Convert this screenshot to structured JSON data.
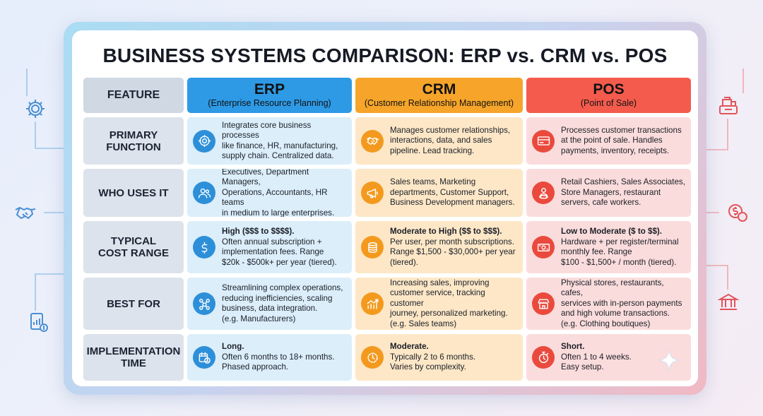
{
  "title": "BUSINESS SYSTEMS COMPARISON: ERP vs. CRM vs. POS",
  "header": {
    "feature": "FEATURE",
    "erp": {
      "name": "ERP",
      "full": "(Enterprise Resource Planning)"
    },
    "crm": {
      "name": "CRM",
      "full": "(Customer Relationship Management)"
    },
    "pos": {
      "name": "POS",
      "full": "(Point of Sale)"
    }
  },
  "rows": [
    {
      "feature": "PRIMARY\nFUNCTION",
      "erp": {
        "icon": "network-gear-icon",
        "lead": "",
        "text": "Integrates core business processes\nlike finance, HR, manufacturing,\nsupply chain. Centralized data."
      },
      "crm": {
        "icon": "handshake-icon",
        "lead": "",
        "text": "Manages customer relationships,\ninteractions, data, and sales\npipeline. Lead tracking."
      },
      "pos": {
        "icon": "credit-card-icon",
        "lead": "",
        "text": "Processes customer transactions\nat the point of sale. Handles\npayments, inventory, receipts."
      }
    },
    {
      "feature": "WHO USES IT",
      "erp": {
        "icon": "users-icon",
        "lead": "",
        "text": "Executives, Department Managers,\nOperations, Accountants, HR teams\nin medium to large enterprises."
      },
      "crm": {
        "icon": "megaphone-icon",
        "lead": "",
        "text": "Sales teams, Marketing\ndepartments, Customer Support,\nBusiness Development managers."
      },
      "pos": {
        "icon": "cashier-icon",
        "lead": "",
        "text": "Retail Cashiers, Sales Associates,\nStore Managers, restaurant\nservers, cafe workers."
      }
    },
    {
      "feature": "TYPICAL\nCOST RANGE",
      "erp": {
        "icon": "dollar-icon",
        "lead": "High ($$$ to $$$$).",
        "text": "Often annual subscription +\nimplementation fees. Range\n$20k - $500k+ per year (tiered)."
      },
      "crm": {
        "icon": "coins-icon",
        "lead": "Moderate to High ($$ to $$$).",
        "text": "Per user, per month subscriptions.\nRange $1,500 - $30,000+ per year\n(tiered)."
      },
      "pos": {
        "icon": "cash-bill-icon",
        "lead": "Low to Moderate ($ to $$).",
        "text": "Hardware + per register/terminal\nmonthly fee. Range\n$100 - $1,500+ / month (tiered)."
      }
    },
    {
      "feature": "BEST FOR",
      "erp": {
        "icon": "process-nodes-icon",
        "lead": "",
        "text": "Streamlining complex operations,\nreducing inefficiencies, scaling\nbusiness, data integration.\n(e.g. Manufacturers)"
      },
      "crm": {
        "icon": "growth-chart-icon",
        "lead": "",
        "text": "Increasing sales, improving\ncustomer service, tracking customer\njourney, personalized marketing.\n(e.g. Sales teams)"
      },
      "pos": {
        "icon": "storefront-icon",
        "lead": "",
        "text": "Physical stores, restaurants, cafes,\nservices with in-person payments\nand high volume transactions.\n(e.g. Clothing boutiques)"
      }
    },
    {
      "feature": "IMPLEMENTATION\nTIME",
      "erp": {
        "icon": "calendar-clock-icon",
        "lead": "Long.",
        "text": "Often 6 months to 18+ months.\nPhased approach."
      },
      "crm": {
        "icon": "progress-clock-icon",
        "lead": "Moderate.",
        "text": "Typically 2 to 6 months.\nVaries by complexity."
      },
      "pos": {
        "icon": "stopwatch-icon",
        "lead": "Short.",
        "text": "Often 1 to 4 weeks.\nEasy setup."
      }
    }
  ],
  "decorations": {
    "left_icons": [
      "gear-icon",
      "handshake-icon",
      "report-icon"
    ],
    "right_icons": [
      "cash-register-icon",
      "currency-coins-icon",
      "bank-icon"
    ],
    "corner": "sparkle-icon"
  },
  "colors": {
    "erp": "#2e9ae6",
    "crm": "#f6a52a",
    "pos": "#f45b4d"
  }
}
